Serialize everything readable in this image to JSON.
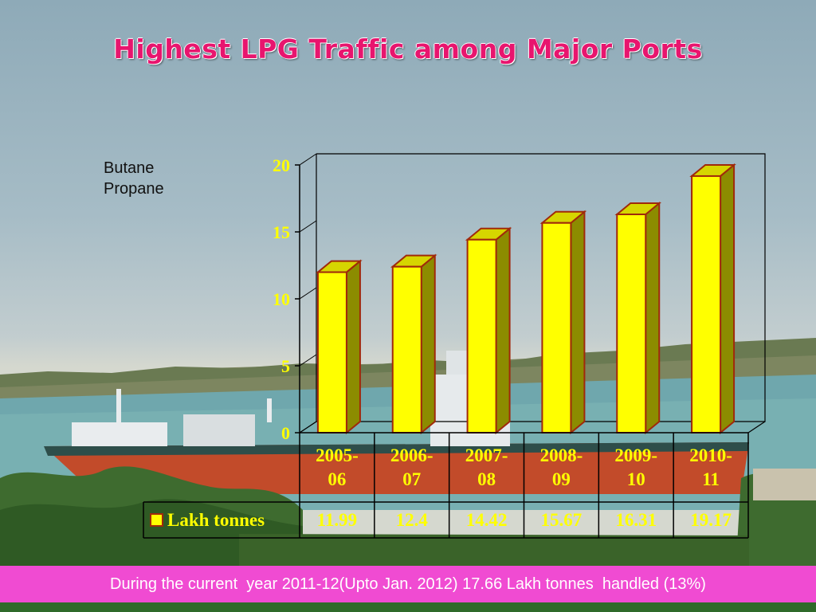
{
  "title": "Highest LPG Traffic among Major Ports",
  "side_note": [
    "Butane",
    "Propane"
  ],
  "footer": "During the current  year 2011-12(Upto Jan. 2012) 17.66 Lakh tonnes  handled (13%)",
  "colors": {
    "title": "#e8156e",
    "bar_front": "#ffff00",
    "bar_side": "#8c8c00",
    "bar_outline": "#a0290b",
    "axis_text": "#ffff00",
    "footer_bg": "#f04bd2"
  },
  "chart_data": {
    "type": "bar",
    "categories": [
      "2005-06",
      "2006-07",
      "2007-08",
      "2008-09",
      "2009-10",
      "2010-11"
    ],
    "category_lines": [
      [
        "2005-",
        "06"
      ],
      [
        "2006-",
        "07"
      ],
      [
        "2007-",
        "08"
      ],
      [
        "2008-",
        "09"
      ],
      [
        "2009-",
        "10"
      ],
      [
        "2010-",
        "11"
      ]
    ],
    "series": [
      {
        "name": "Lakh tonnes",
        "values": [
          11.99,
          12.4,
          14.42,
          15.67,
          16.31,
          19.17
        ]
      }
    ],
    "value_labels": [
      "11.99",
      "12.4",
      "14.42",
      "15.67",
      "16.31",
      "19.17"
    ],
    "yticks": [
      0,
      5,
      10,
      15,
      20
    ],
    "ylim": [
      0,
      20
    ],
    "grid": false,
    "legend": "data-table",
    "style": "3d-column"
  }
}
